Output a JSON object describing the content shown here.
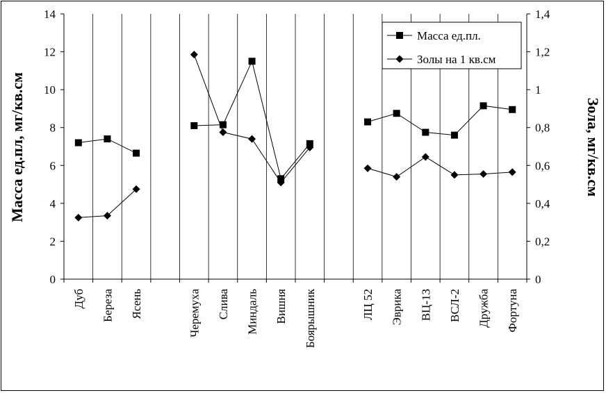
{
  "chart_data": {
    "type": "line",
    "categories": [
      "Дуб",
      "Береза",
      "Ясень",
      "",
      "Черемуха",
      "Слива",
      "Миндаль",
      "Вишня",
      "Боярышник",
      "",
      "ЛЦ 52",
      "Эврика",
      "ВЦ-13",
      "ВСЛ-2",
      "Дружба",
      "Фортуна"
    ],
    "series": [
      {
        "name": "Масса ед.пл.",
        "axis": "left",
        "marker": "square",
        "segments": [
          [
            0,
            2
          ],
          [
            4,
            8
          ],
          [
            10,
            15
          ]
        ],
        "values": [
          7.2,
          7.4,
          6.65,
          null,
          8.1,
          8.15,
          11.5,
          5.3,
          7.15,
          null,
          8.3,
          8.75,
          7.75,
          7.6,
          9.15,
          8.95
        ]
      },
      {
        "name": "Золы на 1 кв.см",
        "axis": "right",
        "marker": "diamond",
        "segments": [
          [
            0,
            2
          ],
          [
            4,
            8
          ],
          [
            10,
            15
          ]
        ],
        "values": [
          0.325,
          0.335,
          0.475,
          null,
          1.185,
          0.775,
          0.74,
          0.51,
          0.695,
          null,
          0.585,
          0.54,
          0.645,
          0.55,
          0.555,
          0.565
        ]
      }
    ],
    "ylabel": "Масса ед.пл, мг/кв.см",
    "y2label": "Зола, мг/кв.см",
    "ylim": [
      0,
      14
    ],
    "y2lim": [
      0,
      1.4
    ],
    "yticks": [
      "0",
      "2",
      "4",
      "6",
      "8",
      "10",
      "12",
      "14"
    ],
    "y2ticks": [
      "0",
      "0,2",
      "0,4",
      "0,6",
      "0,8",
      "1",
      "1,2",
      "1,4"
    ],
    "grid": "vertical",
    "legend": "top-right"
  }
}
